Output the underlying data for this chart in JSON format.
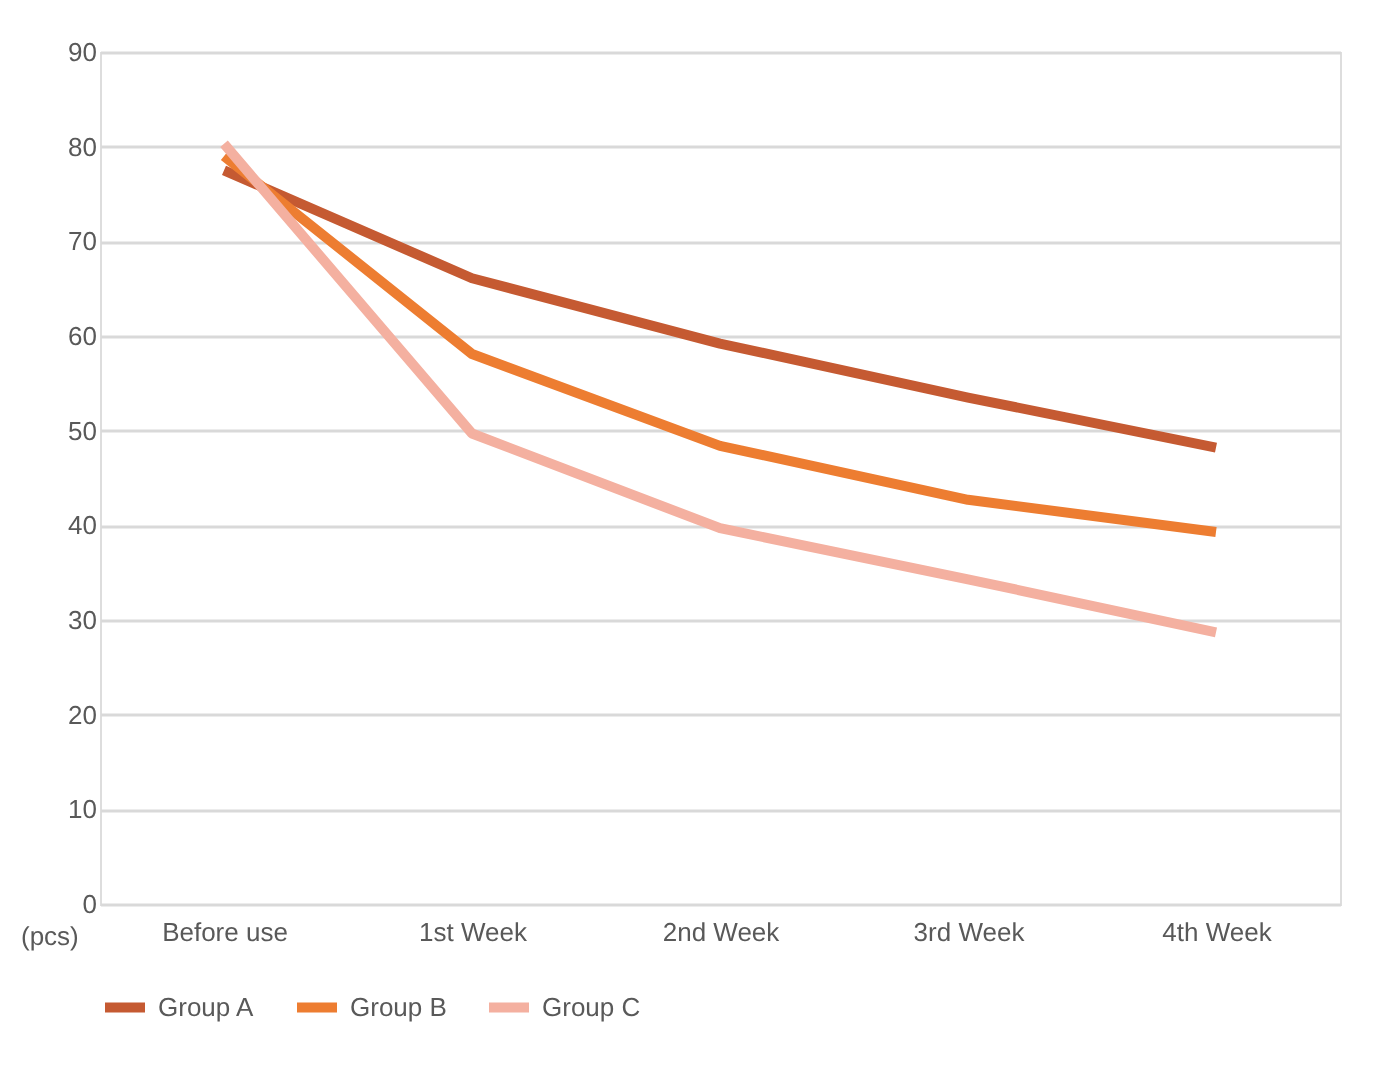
{
  "chart_data": {
    "type": "line",
    "ylabel": "(pcs)",
    "categories": [
      "Before use",
      "1st Week",
      "2nd Week",
      "3rd Week",
      "4th Week"
    ],
    "series": [
      {
        "name": "Group A",
        "color": "#c55a32",
        "values": [
          77.5,
          66.1,
          59.2,
          53.5,
          48.2
        ]
      },
      {
        "name": "Group B",
        "color": "#ed7d31",
        "values": [
          79,
          58.1,
          48.4,
          42.7,
          39.3
        ]
      },
      {
        "name": "Group C",
        "color": "#f4b0a0",
        "values": [
          80.3,
          49.7,
          39.7,
          34.3,
          28.7
        ]
      }
    ],
    "ylim": [
      0,
      90
    ],
    "yticks": [
      0,
      10,
      20,
      30,
      40,
      50,
      60,
      70,
      80,
      90
    ],
    "grid": "y",
    "legend": "bottom",
    "marker": "none",
    "line_style": "solid"
  }
}
